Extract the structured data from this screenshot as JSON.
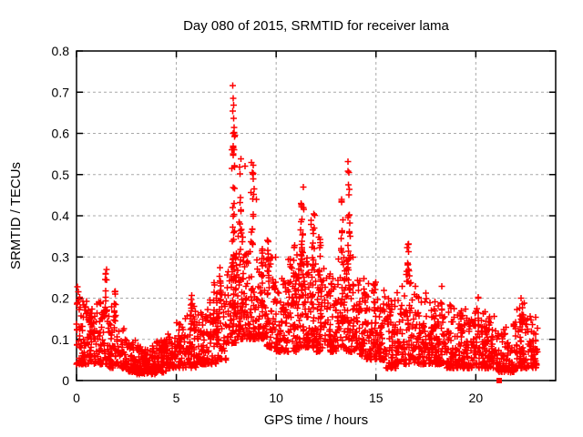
{
  "chart_data": {
    "type": "scatter",
    "title": "Day 080 of 2015, SRMTID for receiver lama",
    "xlabel": "GPS time / hours",
    "ylabel": "SRMTID / TECUs",
    "xlim": [
      0,
      24
    ],
    "ylim": [
      0,
      0.8
    ],
    "xticks": [
      0,
      5,
      10,
      15,
      20
    ],
    "xtick_labels": [
      "0",
      "5",
      "10",
      "15",
      "20"
    ],
    "yticks": [
      0,
      0.1,
      0.2,
      0.3,
      0.4,
      0.5,
      0.6,
      0.7,
      0.8
    ],
    "ytick_labels": [
      "0",
      "0.1",
      "0.2",
      "0.3",
      "0.4",
      "0.5",
      "0.6",
      "0.7",
      "0.8"
    ],
    "grid": {
      "on": true,
      "color": "#a8a8a8",
      "dash": "3,3"
    },
    "frame_color": "#000000",
    "marker": {
      "symbol": "plus",
      "color": "#ff0000",
      "size": 7,
      "stroke_width": 1.5
    },
    "legend": "none",
    "seed": 20150080,
    "cloud_bins": [
      [
        0.0,
        0.5,
        0.04,
        0.21,
        60
      ],
      [
        0.5,
        1.0,
        0.04,
        0.18,
        55
      ],
      [
        1.0,
        1.5,
        0.04,
        0.2,
        52
      ],
      [
        1.5,
        2.0,
        0.03,
        0.18,
        50
      ],
      [
        2.0,
        2.5,
        0.03,
        0.14,
        46
      ],
      [
        2.5,
        3.0,
        0.02,
        0.1,
        52
      ],
      [
        3.0,
        3.5,
        0.015,
        0.09,
        58
      ],
      [
        3.5,
        4.0,
        0.015,
        0.085,
        62
      ],
      [
        4.0,
        4.5,
        0.02,
        0.1,
        58
      ],
      [
        4.5,
        5.0,
        0.03,
        0.12,
        52
      ],
      [
        5.0,
        5.5,
        0.03,
        0.15,
        52
      ],
      [
        5.5,
        6.0,
        0.03,
        0.19,
        56
      ],
      [
        6.0,
        6.5,
        0.04,
        0.17,
        56
      ],
      [
        6.5,
        7.0,
        0.04,
        0.2,
        52
      ],
      [
        7.0,
        7.5,
        0.05,
        0.22,
        52
      ],
      [
        7.5,
        8.0,
        0.09,
        0.3,
        58
      ],
      [
        8.0,
        8.5,
        0.1,
        0.35,
        62
      ],
      [
        8.5,
        9.0,
        0.1,
        0.33,
        58
      ],
      [
        9.0,
        9.5,
        0.1,
        0.3,
        52
      ],
      [
        9.5,
        10.0,
        0.08,
        0.3,
        56
      ],
      [
        10.0,
        10.5,
        0.07,
        0.25,
        60
      ],
      [
        10.5,
        11.0,
        0.07,
        0.3,
        60
      ],
      [
        11.0,
        11.5,
        0.08,
        0.33,
        62
      ],
      [
        11.5,
        12.0,
        0.08,
        0.3,
        62
      ],
      [
        12.0,
        12.5,
        0.07,
        0.28,
        60
      ],
      [
        12.5,
        13.0,
        0.07,
        0.26,
        60
      ],
      [
        13.0,
        13.5,
        0.08,
        0.3,
        56
      ],
      [
        13.5,
        14.0,
        0.07,
        0.3,
        56
      ],
      [
        14.0,
        14.5,
        0.06,
        0.25,
        60
      ],
      [
        14.5,
        15.0,
        0.05,
        0.24,
        56
      ],
      [
        15.0,
        15.5,
        0.05,
        0.22,
        56
      ],
      [
        15.5,
        16.0,
        0.03,
        0.2,
        60
      ],
      [
        16.0,
        16.5,
        0.04,
        0.24,
        56
      ],
      [
        16.5,
        17.0,
        0.04,
        0.27,
        56
      ],
      [
        17.0,
        17.5,
        0.04,
        0.22,
        56
      ],
      [
        17.5,
        18.0,
        0.04,
        0.2,
        56
      ],
      [
        18.0,
        18.5,
        0.04,
        0.19,
        56
      ],
      [
        18.5,
        19.0,
        0.03,
        0.19,
        56
      ],
      [
        19.0,
        19.5,
        0.03,
        0.18,
        56
      ],
      [
        19.5,
        20.0,
        0.03,
        0.17,
        56
      ],
      [
        20.0,
        20.5,
        0.03,
        0.17,
        56
      ],
      [
        20.5,
        21.0,
        0.03,
        0.16,
        52
      ],
      [
        21.0,
        21.5,
        0.02,
        0.14,
        46
      ],
      [
        21.5,
        22.0,
        0.02,
        0.15,
        48
      ],
      [
        22.0,
        22.5,
        0.03,
        0.19,
        54
      ],
      [
        22.5,
        23.1,
        0.03,
        0.16,
        58
      ]
    ],
    "spike_columns": [
      [
        1.45,
        0.06,
        0.15,
        0.275,
        12
      ],
      [
        1.95,
        0.05,
        0.13,
        0.225,
        8
      ],
      [
        5.75,
        0.08,
        0.12,
        0.22,
        8
      ],
      [
        6.9,
        0.06,
        0.14,
        0.25,
        7
      ],
      [
        7.2,
        0.06,
        0.16,
        0.285,
        10
      ],
      [
        7.85,
        0.1,
        0.18,
        0.62,
        42
      ],
      [
        8.2,
        0.1,
        0.28,
        0.55,
        16
      ],
      [
        8.8,
        0.1,
        0.3,
        0.58,
        16
      ],
      [
        9.3,
        0.08,
        0.24,
        0.37,
        10
      ],
      [
        9.6,
        0.08,
        0.24,
        0.345,
        9
      ],
      [
        10.9,
        0.08,
        0.2,
        0.33,
        9
      ],
      [
        11.3,
        0.1,
        0.26,
        0.465,
        22
      ],
      [
        11.85,
        0.12,
        0.22,
        0.42,
        16
      ],
      [
        12.2,
        0.08,
        0.2,
        0.35,
        8
      ],
      [
        13.3,
        0.07,
        0.28,
        0.44,
        12
      ],
      [
        13.65,
        0.09,
        0.24,
        0.53,
        18
      ],
      [
        14.95,
        0.06,
        0.16,
        0.285,
        6
      ],
      [
        16.6,
        0.08,
        0.24,
        0.34,
        10
      ],
      [
        18.3,
        0.06,
        0.15,
        0.23,
        5
      ],
      [
        20.1,
        0.06,
        0.13,
        0.21,
        5
      ],
      [
        22.3,
        0.07,
        0.14,
        0.24,
        6
      ]
    ],
    "outliers": [
      [
        0.05,
        0.228
      ],
      [
        0.1,
        0.215
      ],
      [
        7.82,
        0.716
      ],
      [
        7.85,
        0.685
      ],
      [
        7.86,
        0.669
      ],
      [
        7.83,
        0.654
      ],
      [
        7.88,
        0.637
      ],
      [
        7.9,
        0.614
      ],
      [
        8.45,
        0.52
      ],
      [
        8.85,
        0.49
      ],
      [
        8.9,
        0.465
      ],
      [
        9.0,
        0.44
      ],
      [
        11.35,
        0.47
      ],
      [
        13.6,
        0.532
      ],
      [
        13.64,
        0.505
      ]
    ],
    "zero_point": {
      "x": 21.17,
      "y": 0,
      "symbol": "square"
    }
  }
}
